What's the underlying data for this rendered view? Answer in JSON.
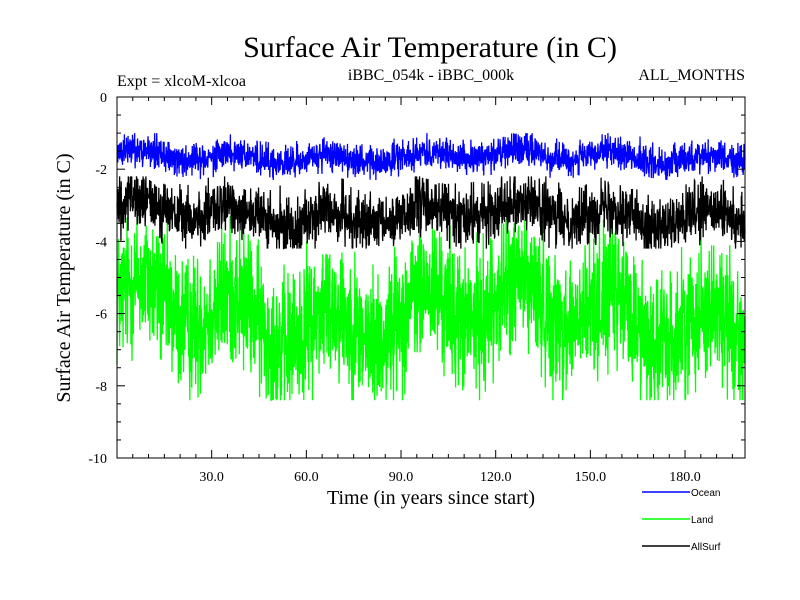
{
  "chart_data": {
    "type": "line",
    "title": "Surface Air Temperature (in C)",
    "subtitle_left": "Expt = xlcoM-xlcoa",
    "subtitle_center": "iBBC_054k - iBBC_000k",
    "subtitle_right": "ALL_MONTHS",
    "xlabel": "Time (in years since start)",
    "ylabel": "Surface Air Temperature (in C)",
    "xlim": [
      0,
      199
    ],
    "ylim": [
      -10,
      0
    ],
    "x_ticks": [
      30,
      60,
      90,
      120,
      150,
      180
    ],
    "x_tick_labels": [
      "30.0",
      "60.0",
      "90.0",
      "120.0",
      "150.0",
      "180.0"
    ],
    "y_ticks": [
      0,
      -2,
      -4,
      -6,
      -8,
      -10
    ],
    "y_tick_labels": [
      "0",
      "-2",
      "-4",
      "-6",
      "-8",
      "-10"
    ],
    "grid": false,
    "legend_position": "bottom-right",
    "points_per_series": 2388,
    "series": [
      {
        "name": "Ocean",
        "color": "#0000ff",
        "mean": -1.65,
        "spread": 0.55,
        "min": -2.3,
        "max": -1.0
      },
      {
        "name": "Land",
        "color": "#00ff00",
        "mean": -6.0,
        "spread": 2.4,
        "min": -8.4,
        "max": -3.3
      },
      {
        "name": "AllSurf",
        "color": "#000000",
        "mean": -3.25,
        "spread": 1.0,
        "min": -4.2,
        "max": -2.2
      }
    ]
  }
}
